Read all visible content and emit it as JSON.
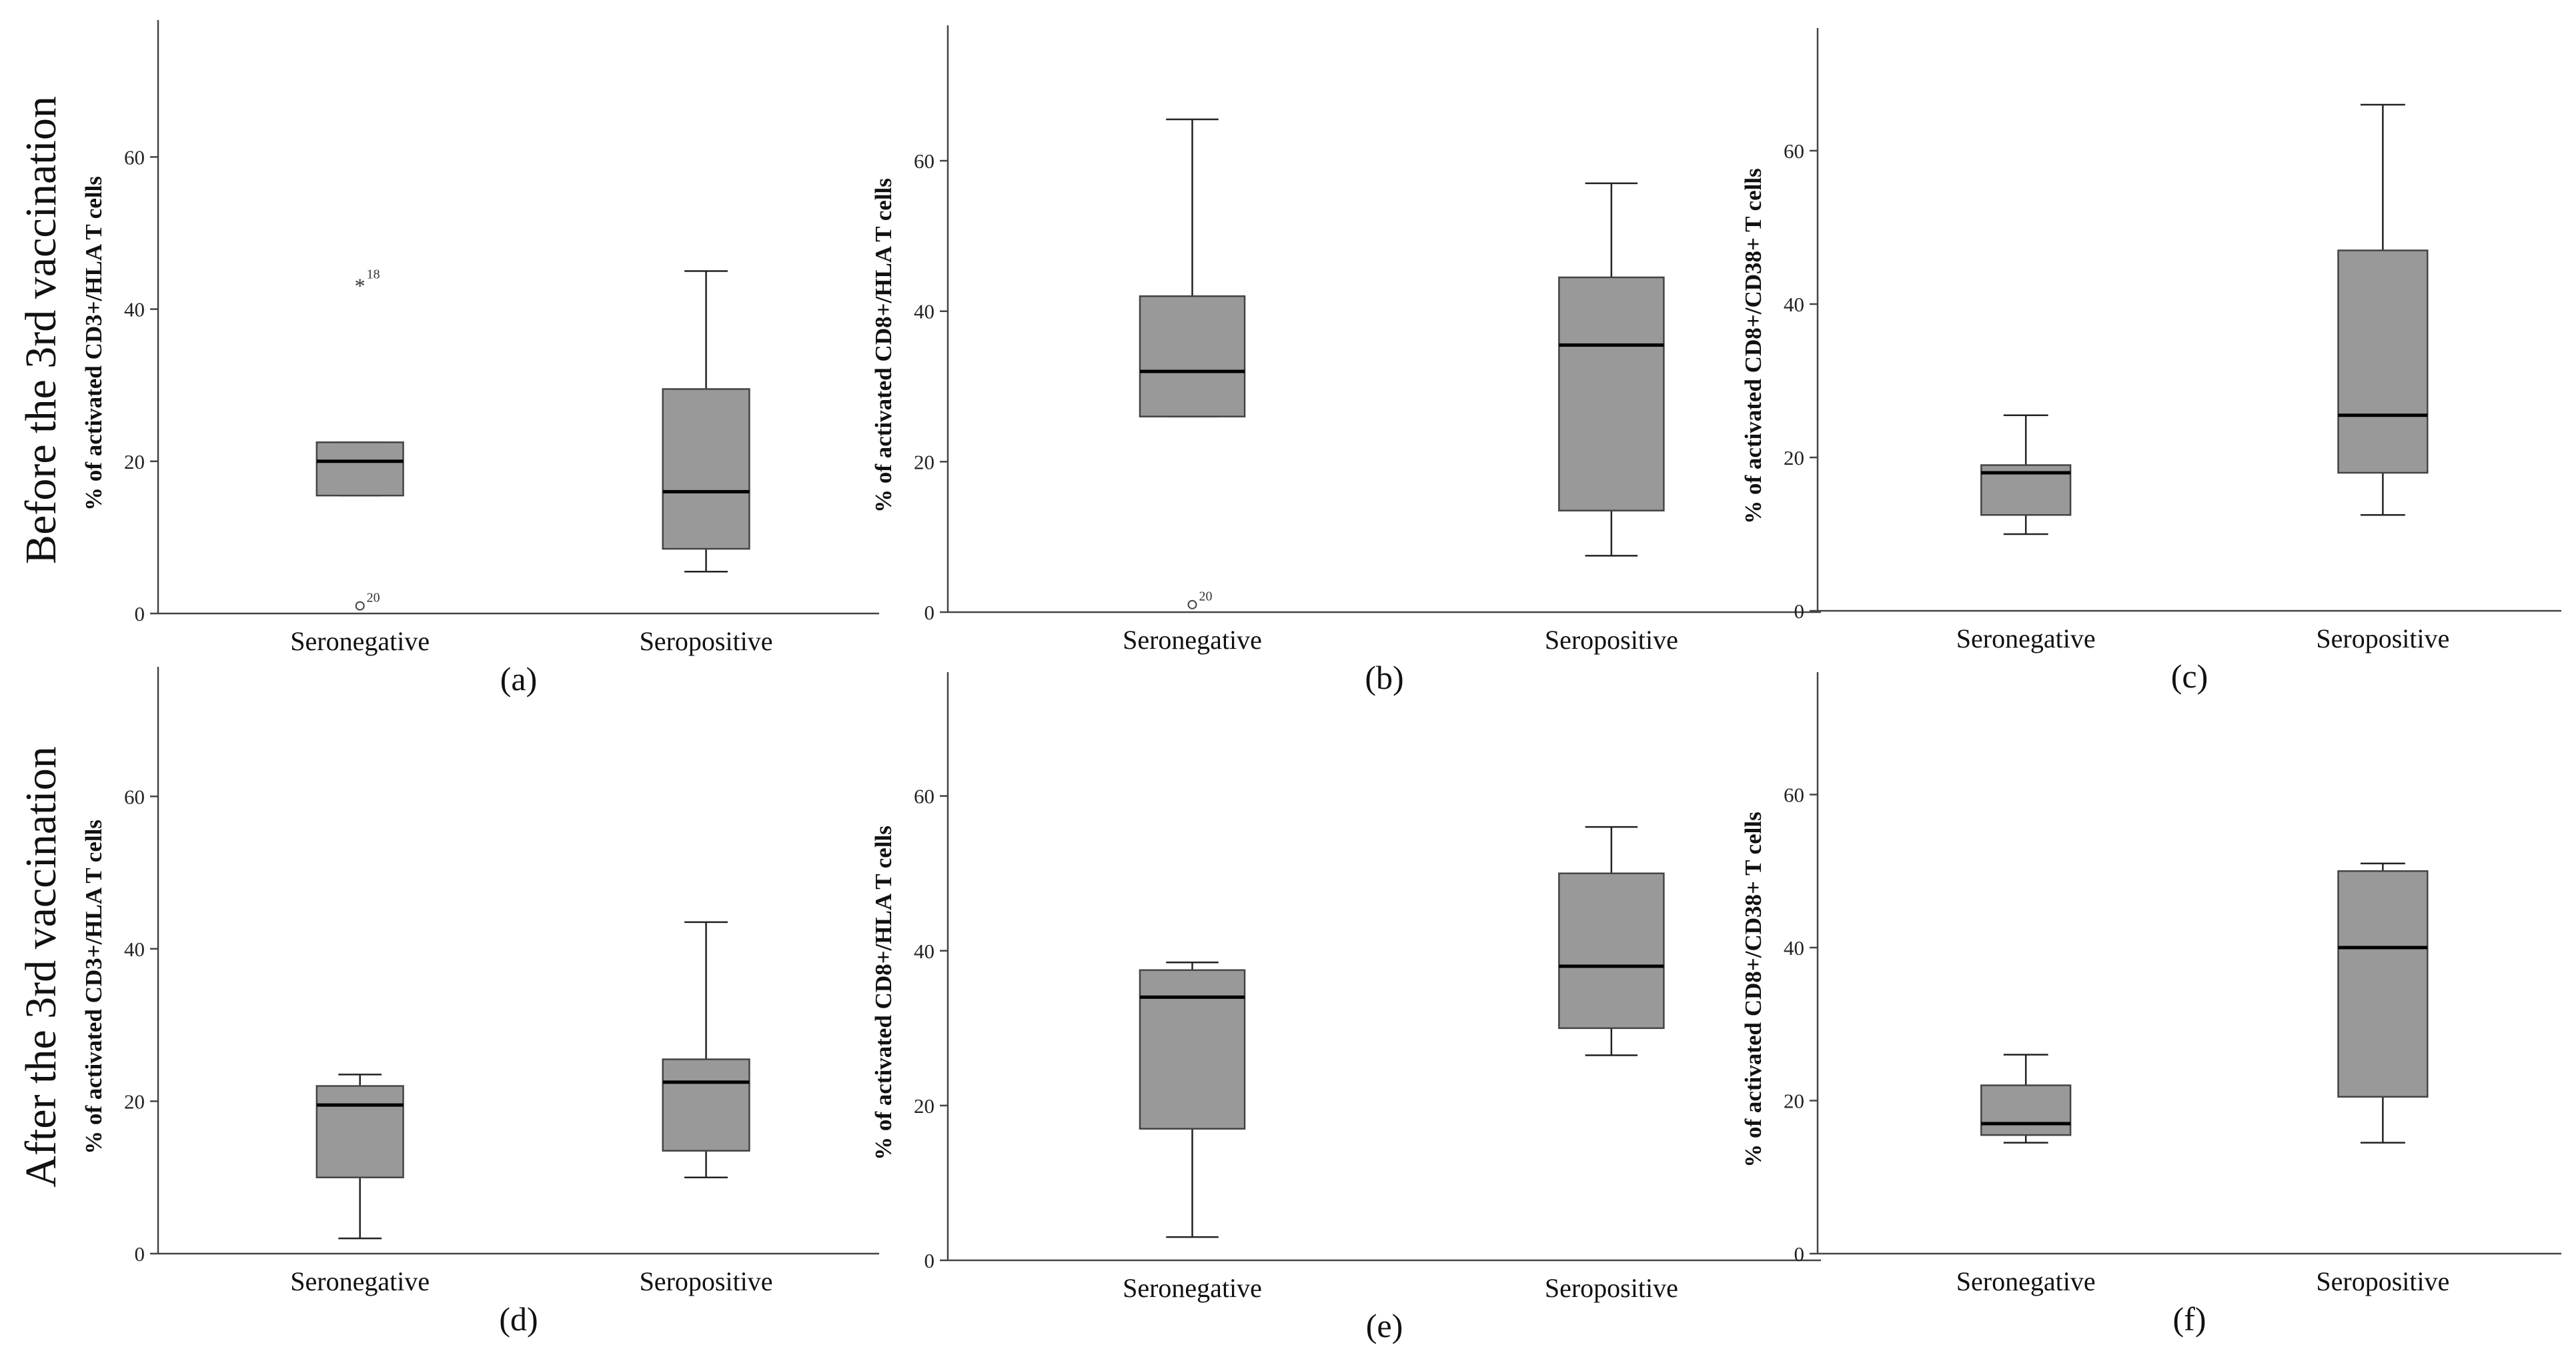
{
  "row_labels": [
    "Before the 3rd vaccination",
    "After the 3rd vaccination"
  ],
  "chart_data": [
    {
      "type": "boxplot",
      "panel_label": "(a)",
      "ylabel": "% of activated CD3+/HLA T cells",
      "ylim": [
        0,
        78
      ],
      "yticks": [
        0,
        20,
        40,
        60
      ],
      "categories": [
        "Seronegative",
        "Seropositive"
      ],
      "series": [
        {
          "name": "Seronegative",
          "whisker_low": 15.5,
          "q1": 15.5,
          "median": 20,
          "q3": 22.5,
          "whisker_high": 22.5,
          "outliers": [
            {
              "value": 43.5,
              "symbol": "*",
              "label": "18"
            },
            {
              "value": 1,
              "symbol": "o",
              "label": "20"
            }
          ]
        },
        {
          "name": "Seropositive",
          "whisker_low": 5.5,
          "q1": 8.5,
          "median": 16,
          "q3": 29.5,
          "whisker_high": 45,
          "outliers": []
        }
      ]
    },
    {
      "type": "boxplot",
      "panel_label": "(b)",
      "ylabel": "% of activated CD8+/HLA T cells",
      "ylim": [
        0,
        78
      ],
      "yticks": [
        0,
        20,
        40,
        60
      ],
      "categories": [
        "Seronegative",
        "Seropositive"
      ],
      "series": [
        {
          "name": "Seronegative",
          "whisker_low": 26,
          "q1": 26,
          "median": 32,
          "q3": 42,
          "whisker_high": 65.5,
          "outliers": [
            {
              "value": 1,
              "symbol": "o",
              "label": "20"
            }
          ]
        },
        {
          "name": "Seropositive",
          "whisker_low": 7.5,
          "q1": 13.5,
          "median": 35.5,
          "q3": 44.5,
          "whisker_high": 57,
          "outliers": []
        }
      ]
    },
    {
      "type": "boxplot",
      "panel_label": "(c)",
      "ylabel": "% of activated CD8+/CD38+ T cells",
      "ylim": [
        0,
        76
      ],
      "yticks": [
        0,
        20,
        40,
        60
      ],
      "categories": [
        "Seronegative",
        "Seropositive"
      ],
      "series": [
        {
          "name": "Seronegative",
          "whisker_low": 10,
          "q1": 12.5,
          "median": 18,
          "q3": 19,
          "whisker_high": 25.5,
          "outliers": []
        },
        {
          "name": "Seropositive",
          "whisker_low": 12.5,
          "q1": 18,
          "median": 25.5,
          "q3": 47,
          "whisker_high": 66,
          "outliers": []
        }
      ]
    },
    {
      "type": "boxplot",
      "panel_label": "(d)",
      "ylabel": "% of activated CD3+/HLA T cells",
      "ylim": [
        0,
        77
      ],
      "yticks": [
        0,
        20,
        40,
        60
      ],
      "categories": [
        "Seronegative",
        "Seropositive"
      ],
      "series": [
        {
          "name": "Seronegative",
          "whisker_low": 2,
          "q1": 10,
          "median": 19.5,
          "q3": 22,
          "whisker_high": 23.5,
          "outliers": []
        },
        {
          "name": "Seropositive",
          "whisker_low": 10,
          "q1": 13.5,
          "median": 22.5,
          "q3": 25.5,
          "whisker_high": 43.5,
          "outliers": []
        }
      ]
    },
    {
      "type": "boxplot",
      "panel_label": "(e)",
      "ylabel": "% of activated CD8+/HLA T cells",
      "ylim": [
        0,
        76
      ],
      "yticks": [
        0,
        20,
        40,
        60
      ],
      "categories": [
        "Seronegative",
        "Seropositive"
      ],
      "series": [
        {
          "name": "Seronegative",
          "whisker_low": 3,
          "q1": 17,
          "median": 34,
          "q3": 37.5,
          "whisker_high": 38.5,
          "outliers": []
        },
        {
          "name": "Seropositive",
          "whisker_low": 26.5,
          "q1": 30,
          "median": 38,
          "q3": 50,
          "whisker_high": 56,
          "outliers": []
        }
      ]
    },
    {
      "type": "boxplot",
      "panel_label": "(f)",
      "ylabel": "% of activated CD8+/CD38+ T cells",
      "ylim": [
        0,
        76
      ],
      "yticks": [
        0,
        20,
        40,
        60
      ],
      "categories": [
        "Seronegative",
        "Seropositive"
      ],
      "series": [
        {
          "name": "Seronegative",
          "whisker_low": 14.5,
          "q1": 15.5,
          "median": 17,
          "q3": 22,
          "whisker_high": 26,
          "outliers": []
        },
        {
          "name": "Seropositive",
          "whisker_low": 14.5,
          "q1": 20.5,
          "median": 40,
          "q3": 50,
          "whisker_high": 51,
          "outliers": []
        }
      ]
    }
  ]
}
